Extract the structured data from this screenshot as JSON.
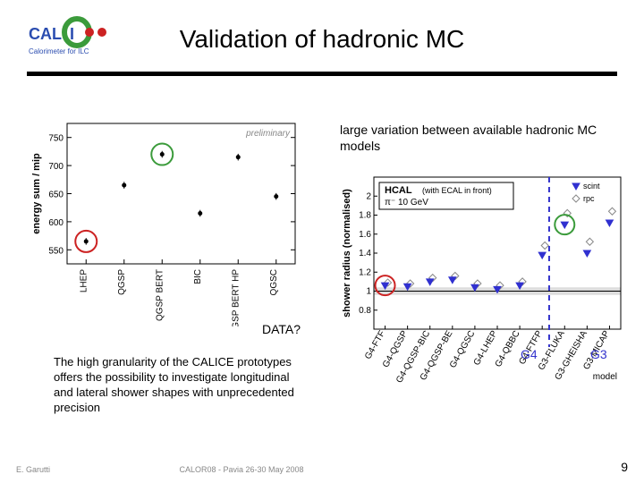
{
  "logo": {
    "text_main": "CALICE",
    "subtext": "Calorimeter for ILC",
    "blue": "#2b4db0",
    "red": "#cc2222",
    "green": "#3b9b3b"
  },
  "title": "Validation of hadronic MC",
  "text_large_variation": "large variation between available hadronic MC models",
  "text_data_q": "DATA?",
  "text_granularity": "The high granularity of the CALICE prototypes offers the possibility to investigate longitudinal and lateral shower shapes with unprecedented precision",
  "g4": "G4",
  "g3": "G3",
  "footer": {
    "left": "E. Garutti",
    "center": "CALOR08 - Pavia 26-30 May 2008",
    "page": "9"
  },
  "chart1": {
    "ylabel": "energy sum / mip",
    "ylim": [
      525,
      775
    ],
    "yticks": [
      550,
      600,
      650,
      700,
      750
    ],
    "prelim": "preliminary",
    "categories": [
      "LHEP",
      "QGSP",
      "QGSP BERT",
      "BIC",
      "QGSP BERT HP",
      "QGSC"
    ],
    "points": [
      565,
      665,
      720,
      615,
      715,
      645
    ],
    "circles": [
      {
        "idx": 0,
        "color": "#cc2222"
      },
      {
        "idx": 2,
        "color": "#3b9b3b"
      }
    ],
    "err": 6
  },
  "chart2": {
    "ylabel": "shower radius (normalised)",
    "title_box": "HCAL",
    "title_sub": "(with ECAL in front)",
    "energy_label": "π⁻ 10 GeV",
    "legend_scint": "scint",
    "legend_rpc": "rpc",
    "ylim": [
      0.6,
      2.2
    ],
    "yticks": [
      0.8,
      1.0,
      1.2,
      1.4,
      1.6,
      1.8,
      2.0
    ],
    "band": {
      "lo": 0.96,
      "hi": 1.04
    },
    "dash_x": 0.71,
    "categories": [
      "G4-FTF",
      "G4-QGSP",
      "G4-QGSP-BIC",
      "G4-QGSP-BE",
      "G4-QGSC",
      "G4-LHEP",
      "G4-QBBC",
      "G4-FTFP",
      "G3-FLUKA",
      "G3-GHEISHA",
      "G3-MICAP"
    ],
    "scint_y": [
      1.06,
      1.05,
      1.1,
      1.12,
      1.04,
      1.02,
      1.06,
      1.38,
      1.7,
      1.4,
      1.72
    ],
    "rpc_y": [
      1.09,
      1.08,
      1.14,
      1.16,
      1.08,
      1.06,
      1.1,
      1.48,
      1.82,
      1.52,
      1.84
    ],
    "circles": [
      {
        "idx": 0,
        "color": "#cc2222"
      },
      {
        "idx": 8,
        "color": "#3b9b3b"
      }
    ],
    "colors": {
      "scint": "#3030d0",
      "rpc": "#888888"
    }
  }
}
